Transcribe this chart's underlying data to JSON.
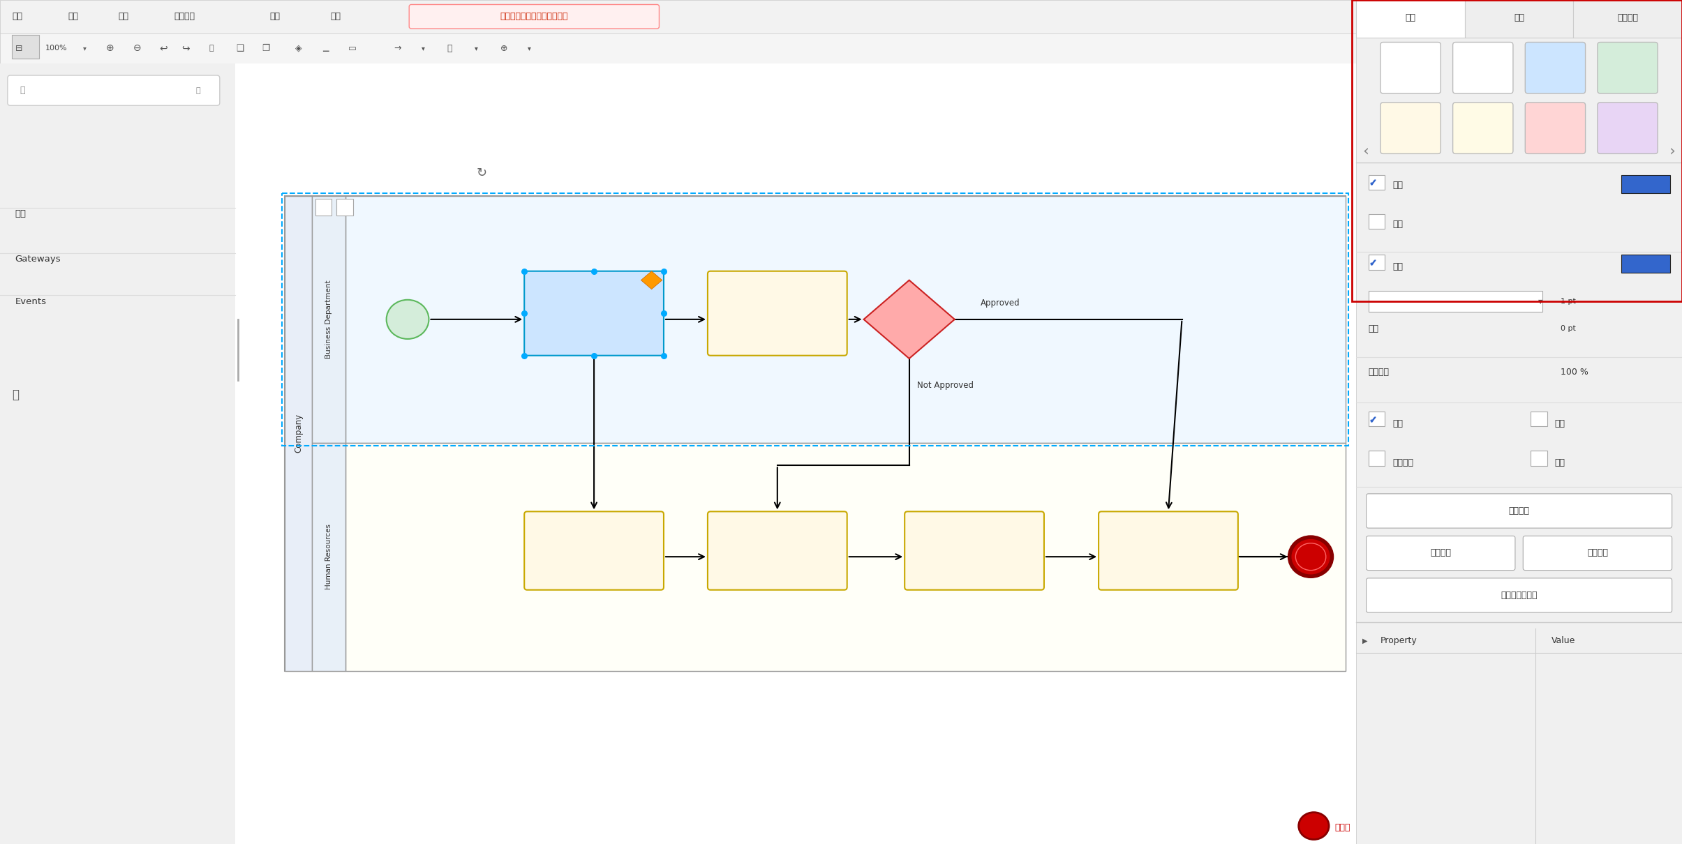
{
  "bg_color": "#e8e8e8",
  "menu_items": [
    "文件",
    "编辑",
    "查看",
    "调整图形",
    "其它",
    "帮助"
  ],
  "unsaved_text": "修改未保存。点击此处保存。",
  "left_panel_items": [
    "通用",
    "Gateways",
    "Events"
  ],
  "right_tab_labels": [
    "样式",
    "文本",
    "调整图形"
  ],
  "right_colors_row1": [
    "#ffffff",
    "#ffffff",
    "#cce5ff",
    "#d4edda"
  ],
  "right_colors_row2": [
    "#fff9e6",
    "#fffbe6",
    "#ffd5d5",
    "#e8d5f5"
  ],
  "right_fill_label": "填充",
  "right_gradient_label": "渐变",
  "right_stroke_label": "绕型",
  "right_opacity_label": "不透明度",
  "right_opacity_val": "100 %",
  "right_corner_label": "圆角",
  "right_shadow_label": "阴影",
  "right_glass_label": "玻璃效果",
  "right_hand_label": "手绘",
  "right_btn1": "编辑样式",
  "right_btn2": "复制风格",
  "right_btn3": "粘贴样式",
  "right_btn4": "设置为默认样式",
  "right_property_label": "Property",
  "right_value_label": "Value",
  "pool_label": "Company",
  "lane1_label": "Business Department",
  "lane2_label": "Human Resources",
  "footer_logo": "亿速云"
}
